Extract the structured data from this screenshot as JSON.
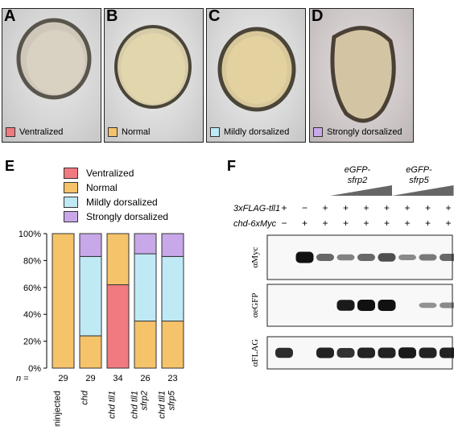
{
  "panels": [
    {
      "letter": "A",
      "caption": "Ventralized",
      "color": "#f07a80"
    },
    {
      "letter": "B",
      "caption": "Normal",
      "color": "#f5c36a"
    },
    {
      "letter": "C",
      "caption": "Mildly dorsalized",
      "color": "#bfe9f5"
    },
    {
      "letter": "D",
      "caption": "Strongly dorsalized",
      "color": "#c8a8e8"
    }
  ],
  "panel_e": {
    "letter": "E"
  },
  "panel_f": {
    "letter": "F"
  },
  "legend": [
    {
      "label": "Ventralized",
      "color": "#f07a80"
    },
    {
      "label": "Normal",
      "color": "#f5c36a"
    },
    {
      "label": "Mildly dorsalized",
      "color": "#bfe9f5"
    },
    {
      "label": "Strongly dorsalized",
      "color": "#c8a8e8"
    }
  ],
  "chart_data": {
    "type": "bar",
    "stacked": true,
    "categories": [
      "uninjected",
      "chd",
      "chd tll1",
      "chd tll1 sfrp2",
      "chd tll1 sfrp5"
    ],
    "category_lines": [
      [
        "uninjected"
      ],
      [
        "chd"
      ],
      [
        "chd tll1"
      ],
      [
        "chd tll1",
        "sfrp2"
      ],
      [
        "chd tll1",
        "sfrp5"
      ]
    ],
    "category_italic": [
      false,
      true,
      true,
      true,
      true
    ],
    "n_label": "n =",
    "n_values": [
      "29",
      "29",
      "34",
      "26",
      "23"
    ],
    "series": [
      {
        "name": "Ventralized",
        "color": "#f07a80",
        "values": [
          0,
          0,
          62,
          0,
          0
        ]
      },
      {
        "name": "Normal",
        "color": "#f5c36a",
        "values": [
          100,
          24,
          38,
          35,
          35
        ]
      },
      {
        "name": "Mildly dorsalized",
        "color": "#bfe9f5",
        "values": [
          0,
          59,
          0,
          50,
          48
        ]
      },
      {
        "name": "Strongly dorsalized",
        "color": "#c8a8e8",
        "values": [
          0,
          17,
          0,
          15,
          17
        ]
      }
    ],
    "yticks": [
      "0%",
      "20%",
      "40%",
      "60%",
      "80%",
      "100%"
    ],
    "ylim": [
      0,
      100
    ]
  },
  "blot": {
    "group1_label": [
      "eGFP-",
      "sfrp2"
    ],
    "group2_label": [
      "eGFP-",
      "sfrp5"
    ],
    "row1_label": "3xFLAG-tll1",
    "row2_label": "chd-6xMyc",
    "row1_signs": [
      "+",
      "−",
      "+",
      "+",
      "+",
      "+",
      "+",
      "+",
      "+"
    ],
    "row2_signs": [
      "−",
      "+",
      "+",
      "+",
      "+",
      "+",
      "+",
      "+",
      "+"
    ],
    "bands_myc": [
      0,
      1.0,
      0.5,
      0.35,
      0.5,
      0.65,
      0.3,
      0.4,
      0.5
    ],
    "bands_gfp": [
      0,
      0,
      0,
      0.95,
      1.0,
      1.0,
      0,
      0.25,
      0.3
    ],
    "bands_flag": [
      0.85,
      0,
      0.9,
      0.8,
      0.9,
      0.9,
      0.95,
      0.9,
      0.9
    ],
    "blot_labels": [
      "αMyc",
      "αeGFP",
      "αFLAG"
    ]
  }
}
